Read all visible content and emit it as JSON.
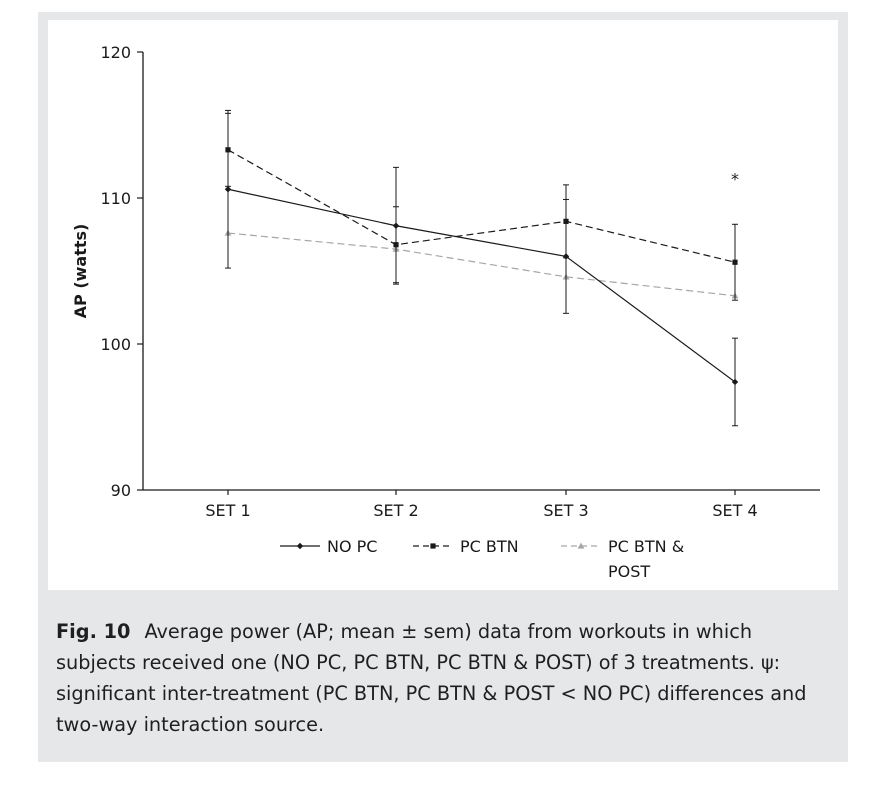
{
  "chart_data": {
    "type": "line",
    "title": "",
    "xlabel": "",
    "ylabel": "AP (watts)",
    "categories": [
      "SET 1",
      "SET 2",
      "SET 3",
      "SET 4"
    ],
    "ylim": [
      90,
      120
    ],
    "yticks": [
      "90",
      "100",
      "110",
      "120"
    ],
    "grid": false,
    "legend_position": "bottom",
    "series": [
      {
        "name": "NO PC",
        "color": "#1a1a1a",
        "dash": "solid",
        "marker": "diamond",
        "values": [
          110.6,
          108.1,
          106.0,
          97.4
        ],
        "sem": [
          5.4,
          4.0,
          3.9,
          3.0
        ]
      },
      {
        "name": "PC BTN",
        "color": "#1a1a1a",
        "dash": "dashed",
        "marker": "square",
        "values": [
          113.3,
          106.8,
          108.4,
          105.6
        ],
        "sem": [
          2.5,
          2.6,
          2.5,
          2.6
        ]
      },
      {
        "name": "PC BTN & POST",
        "legend_lines": [
          "PC BTN &",
          "POST"
        ],
        "color": "#a6a6a6",
        "dash": "dashed",
        "marker": "triangle",
        "values": [
          107.6,
          106.5,
          104.6,
          103.3
        ],
        "sem": [
          0,
          0,
          0,
          0
        ]
      }
    ],
    "annotations": [
      {
        "category": "SET 4",
        "y": 111.6,
        "text": "*"
      }
    ]
  },
  "caption": {
    "label": "Fig. 10",
    "text": "Average power (AP; mean ± sem) data from workouts in which subjects received one (NO PC, PC BTN, PC BTN & POST) of 3 treatments. ψ: significant inter-treatment (PC BTN, PC BTN & POST < NO PC) differences and two-way interaction source."
  }
}
